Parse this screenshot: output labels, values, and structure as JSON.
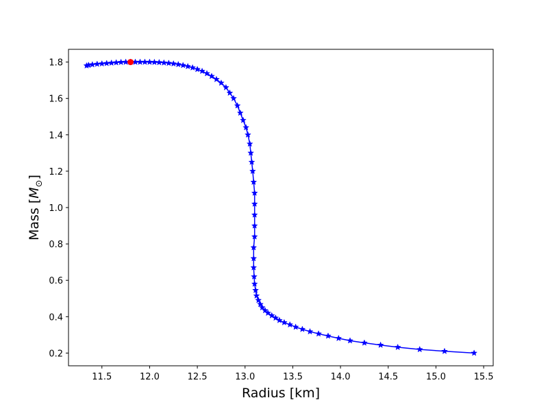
{
  "chart_data": {
    "type": "line",
    "xlabel": "Radius [km]",
    "ylabel_main": "Mass [",
    "ylabel_sym": "M",
    "ylabel_sub": "⊙",
    "ylabel_end": "]",
    "xlim": [
      11.15,
      15.6
    ],
    "ylim": [
      0.13,
      1.87
    ],
    "xticks": [
      11.5,
      12.0,
      12.5,
      13.0,
      13.5,
      14.0,
      14.5,
      15.0,
      15.5
    ],
    "xtick_labels": [
      "11.5",
      "12.0",
      "12.5",
      "13.0",
      "13.5",
      "14.0",
      "14.5",
      "15.0",
      "15.5"
    ],
    "yticks": [
      0.2,
      0.4,
      0.6,
      0.8,
      1.0,
      1.2,
      1.4,
      1.6,
      1.8
    ],
    "ytick_labels": [
      "0.2",
      "0.4",
      "0.6",
      "0.8",
      "1.0",
      "1.2",
      "1.4",
      "1.6",
      "1.8"
    ],
    "grid": false,
    "series": [
      {
        "color": "#0000ff",
        "marker": "star",
        "x": [
          15.4,
          15.09,
          14.83,
          14.6,
          14.42,
          14.25,
          14.1,
          13.98,
          13.87,
          13.77,
          13.68,
          13.6,
          13.53,
          13.47,
          13.41,
          13.36,
          13.32,
          13.28,
          13.24,
          13.21,
          13.18,
          13.16,
          13.14,
          13.12,
          13.11,
          13.1,
          13.095,
          13.09,
          13.09,
          13.09,
          13.1,
          13.1,
          13.1,
          13.1,
          13.1,
          13.09,
          13.08,
          13.07,
          13.06,
          13.05,
          13.03,
          13.01,
          12.98,
          12.95,
          12.92,
          12.88,
          12.84,
          12.8,
          12.75,
          12.7,
          12.65,
          12.6,
          12.55,
          12.5,
          12.45,
          12.4,
          12.35,
          12.3,
          12.25,
          12.2,
          12.15,
          12.1,
          12.05,
          12.0,
          11.95,
          11.9,
          11.85,
          11.8,
          11.75,
          11.7,
          11.65,
          11.6,
          11.55,
          11.5,
          11.45,
          11.4,
          11.36,
          11.34
        ],
        "y": [
          0.2,
          0.21,
          0.22,
          0.232,
          0.244,
          0.256,
          0.268,
          0.281,
          0.294,
          0.306,
          0.318,
          0.331,
          0.343,
          0.356,
          0.368,
          0.38,
          0.393,
          0.406,
          0.42,
          0.434,
          0.45,
          0.468,
          0.49,
          0.515,
          0.545,
          0.58,
          0.62,
          0.67,
          0.72,
          0.78,
          0.84,
          0.9,
          0.96,
          1.02,
          1.08,
          1.14,
          1.2,
          1.25,
          1.3,
          1.35,
          1.4,
          1.44,
          1.48,
          1.52,
          1.56,
          1.6,
          1.63,
          1.66,
          1.685,
          1.705,
          1.722,
          1.737,
          1.75,
          1.76,
          1.769,
          1.776,
          1.782,
          1.787,
          1.791,
          1.794,
          1.796,
          1.798,
          1.799,
          1.8,
          1.8,
          1.8,
          1.8,
          1.8,
          1.8,
          1.799,
          1.797,
          1.795,
          1.793,
          1.791,
          1.789,
          1.786,
          1.783,
          1.78
        ]
      }
    ],
    "highlight_point": {
      "x": 11.8,
      "y": 1.8,
      "color": "#ff0000"
    }
  }
}
